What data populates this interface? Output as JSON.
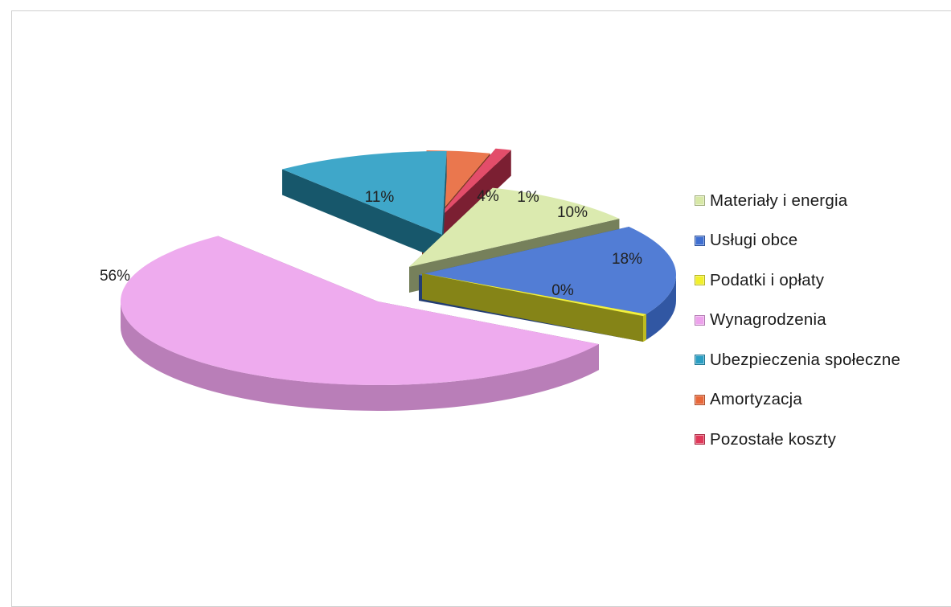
{
  "chart_data": {
    "type": "pie",
    "style": "3d-exploded",
    "categories": [
      "Materiały i energia",
      "Usługi obce",
      "Podatki i opłaty",
      "Wynagrodzenia",
      "Ubezpieczenia społeczne",
      "Amortyzacja",
      "Pozostałe koszty"
    ],
    "values": [
      10,
      18,
      0.4,
      56,
      11,
      4,
      1
    ],
    "data_labels": [
      "10%",
      "18%",
      "0%",
      "56%",
      "11%",
      "4%",
      "1%"
    ],
    "colors": [
      "#d7e8a6",
      "#3f6fd1",
      "#f2f02a",
      "#eda2ec",
      "#2a9ec3",
      "#e8683a",
      "#e0395a"
    ],
    "legend_position": "right"
  }
}
